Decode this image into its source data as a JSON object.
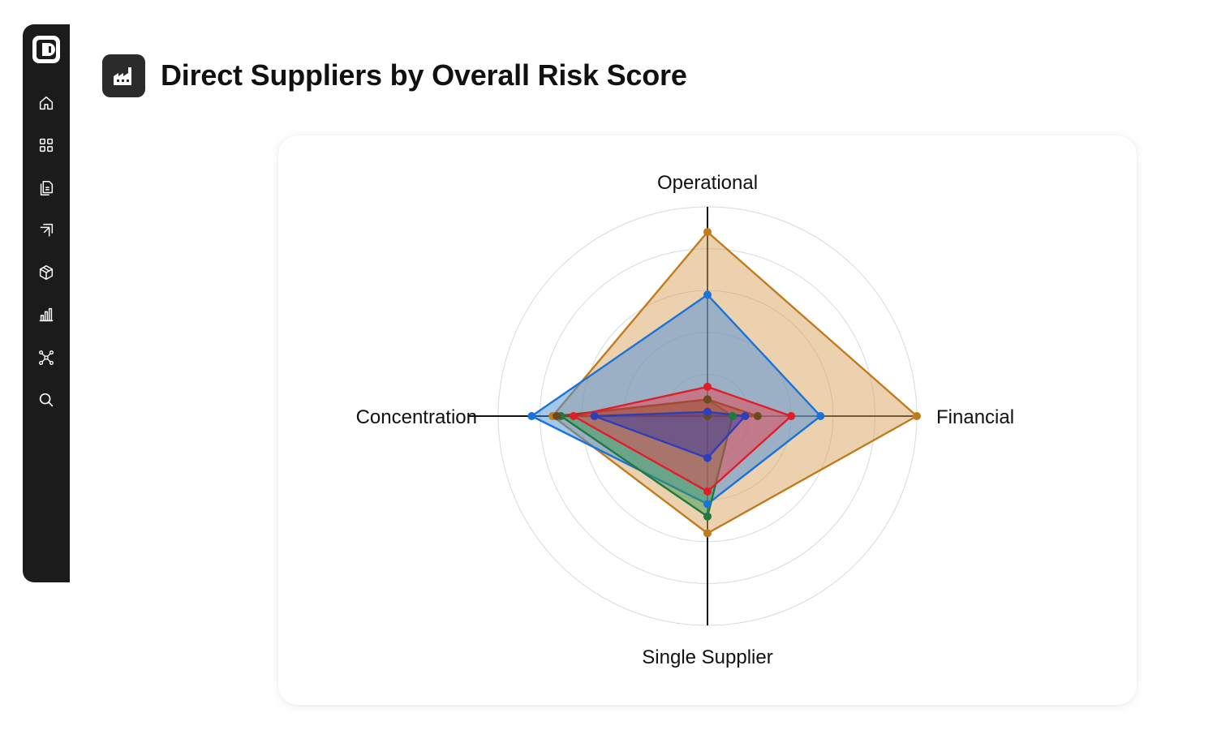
{
  "page": {
    "title": "Direct Suppliers by Overall Risk Score",
    "title_icon": "factory-icon"
  },
  "sidebar": {
    "logo_icon": "logo-icon",
    "items": [
      {
        "icon": "home-icon"
      },
      {
        "icon": "grid-icon"
      },
      {
        "icon": "documents-icon"
      },
      {
        "icon": "copy-icon"
      },
      {
        "icon": "package-icon"
      },
      {
        "icon": "bar-chart-icon"
      },
      {
        "icon": "network-icon"
      },
      {
        "icon": "search-icon"
      }
    ]
  },
  "chart_data": {
    "type": "radar",
    "title": "Direct Suppliers by Overall Risk Score",
    "axes": [
      "Operational",
      "Financial",
      "Single Supplier",
      "Concentration"
    ],
    "range": [
      0,
      5
    ],
    "rings": 5,
    "grid": true,
    "series": [
      {
        "color": "#c07c1c",
        "fill": "#d9a45e",
        "values": [
          4.4,
          5.0,
          2.8,
          3.7
        ]
      },
      {
        "color": "#1a73d9",
        "fill": "#4a8fd9",
        "values": [
          2.9,
          2.7,
          2.1,
          4.2
        ]
      },
      {
        "color": "#1e7a3e",
        "fill": "#3a9a50",
        "values": [
          0.4,
          0.6,
          2.4,
          3.5
        ]
      },
      {
        "color": "#6b4a1e",
        "fill": "#7a5a2e",
        "values": [
          0.4,
          1.2,
          0.0,
          3.6
        ]
      },
      {
        "color": "#e01e2a",
        "fill": "#e8444e",
        "values": [
          0.7,
          2.0,
          1.8,
          3.2
        ]
      },
      {
        "color": "#2c3fb8",
        "fill": "#3a3aa0",
        "values": [
          0.1,
          0.9,
          1.0,
          2.7
        ]
      }
    ]
  }
}
